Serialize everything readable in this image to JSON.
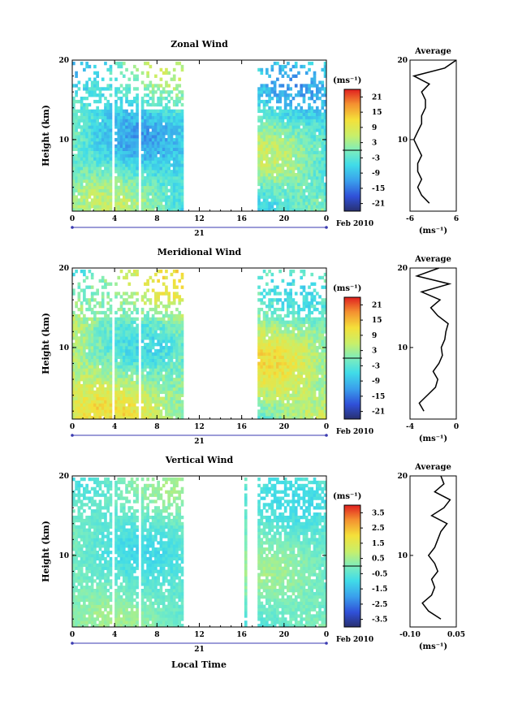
{
  "figure": {
    "xlabel": "Local Time",
    "date_label": "Feb 2010",
    "day_label": "21",
    "colorbar_unit": "(ms⁻¹)",
    "avg_title": "Average",
    "avg_unit": "(ms⁻¹)"
  },
  "chart_data": [
    {
      "type": "heatmap",
      "title": "Zonal Wind",
      "ylabel": "Height (km)",
      "xlim": [
        0,
        24
      ],
      "ylim": [
        1,
        20
      ],
      "xticks": [
        "0",
        "4",
        "8",
        "12",
        "16",
        "20",
        "0"
      ],
      "yticks": [
        "10",
        "20"
      ],
      "colorbar_ticks": [
        "21",
        "15",
        "9",
        "3",
        "-3",
        "-9",
        "-15",
        "-21"
      ],
      "colorbar_range": [
        -24,
        24
      ],
      "data_gaps_local_time": [
        [
          3.7,
          3.9
        ],
        [
          6.2,
          6.4
        ],
        [
          10.6,
          17.6
        ]
      ],
      "dominant_value_range": [
        -12,
        6
      ],
      "average_profile": {
        "xlim": [
          -6,
          6
        ],
        "xticks": [
          "-6",
          "6"
        ],
        "yticks": [
          "10",
          "20"
        ],
        "height": [
          2,
          3,
          4,
          5,
          6,
          7,
          8,
          9,
          10,
          11,
          12,
          13,
          14,
          15,
          16,
          17,
          18,
          19,
          20
        ],
        "value": [
          -1,
          -3,
          -4,
          -3,
          -4,
          -4,
          -3,
          -4,
          -5,
          -4,
          -3,
          -3,
          -2,
          -2,
          -3,
          -1,
          -5,
          3,
          6
        ]
      }
    },
    {
      "type": "heatmap",
      "title": "Meridional Wind",
      "ylabel": "Height (km)",
      "xlim": [
        0,
        24
      ],
      "ylim": [
        1,
        20
      ],
      "xticks": [
        "0",
        "4",
        "8",
        "12",
        "16",
        "20",
        "0"
      ],
      "yticks": [
        "10",
        "20"
      ],
      "colorbar_ticks": [
        "21",
        "15",
        "9",
        "3",
        "-3",
        "-9",
        "-15",
        "-21"
      ],
      "colorbar_range": [
        -24,
        24
      ],
      "data_gaps_local_time": [
        [
          3.7,
          3.9
        ],
        [
          6.2,
          6.4
        ],
        [
          10.6,
          17.6
        ]
      ],
      "dominant_value_range": [
        -6,
        12
      ],
      "average_profile": {
        "xlim": [
          -4,
          0
        ],
        "xticks": [
          "-4",
          "0"
        ],
        "yticks": [
          "10",
          "20"
        ],
        "height": [
          2,
          3,
          4,
          5,
          6,
          7,
          8,
          9,
          10,
          11,
          12,
          13,
          14,
          15,
          16,
          17,
          18,
          19,
          20
        ],
        "value": [
          -2.8,
          -3.2,
          -2.5,
          -1.8,
          -1.6,
          -2.0,
          -1.5,
          -1.2,
          -1.3,
          -1.0,
          -0.9,
          -0.7,
          -1.6,
          -2.2,
          -1.4,
          -3.0,
          -0.6,
          -3.4,
          -1.5
        ]
      }
    },
    {
      "type": "heatmap",
      "title": "Vertical Wind",
      "ylabel": "Height (km)",
      "xlim": [
        0,
        24
      ],
      "ylim": [
        1,
        20
      ],
      "xticks": [
        "0",
        "4",
        "8",
        "12",
        "16",
        "20",
        "0"
      ],
      "yticks": [
        "10",
        "20"
      ],
      "colorbar_ticks": [
        "3.5",
        "2.5",
        "1.5",
        "0.5",
        "-0.5",
        "-1.5",
        "-2.5",
        "-3.5"
      ],
      "colorbar_range": [
        -4,
        4
      ],
      "data_gaps_local_time": [
        [
          3.7,
          3.9
        ],
        [
          6.2,
          6.4
        ],
        [
          10.6,
          16.3
        ],
        [
          16.5,
          17.6
        ]
      ],
      "dominant_value_range": [
        -1,
        0.5
      ],
      "average_profile": {
        "xlim": [
          -0.1,
          0.05
        ],
        "xticks": [
          "-0.10",
          "0.05"
        ],
        "yticks": [
          "10",
          "20"
        ],
        "height": [
          2,
          3,
          4,
          5,
          6,
          7,
          8,
          9,
          10,
          11,
          12,
          13,
          14,
          15,
          16,
          17,
          18,
          19,
          20
        ],
        "value": [
          0.0,
          -0.04,
          -0.06,
          -0.03,
          -0.02,
          -0.03,
          -0.01,
          -0.02,
          -0.04,
          -0.02,
          -0.01,
          0.0,
          0.02,
          -0.03,
          0.01,
          0.03,
          -0.02,
          0.01,
          0.0
        ]
      }
    }
  ]
}
